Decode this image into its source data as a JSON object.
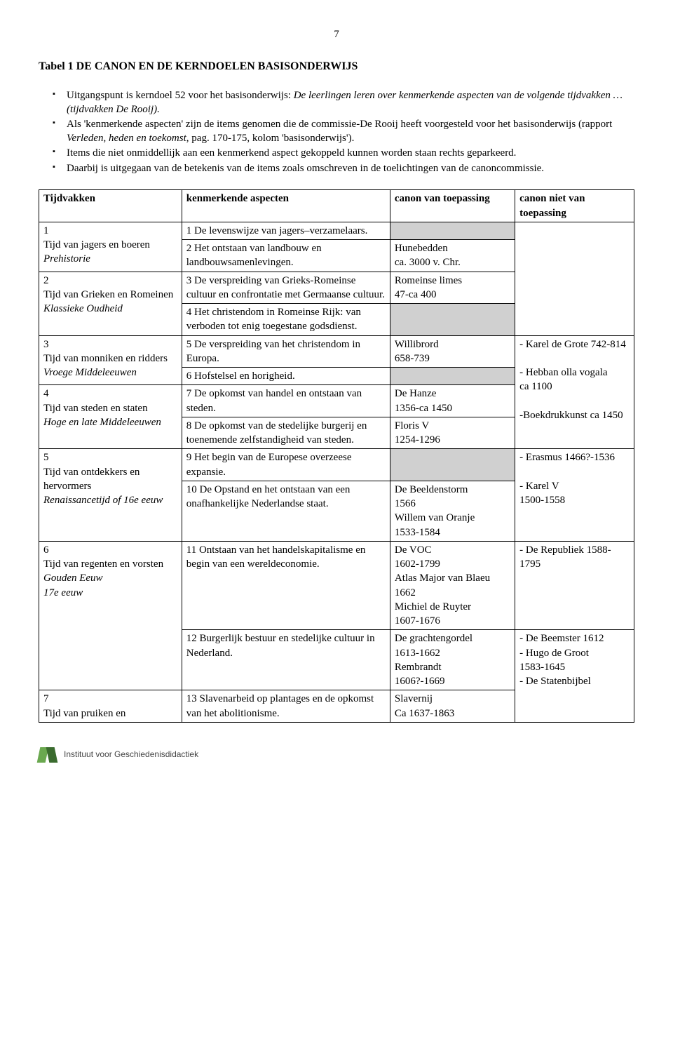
{
  "page_number": "7",
  "title": "Tabel 1  DE CANON EN DE KERNDOELEN BASISONDERWIJS",
  "bullets": [
    {
      "pre": "Uitgangspunt is kerndoel 52 voor het basisonderwijs: ",
      "it": "De leerlingen leren over kenmerkende aspecten van de volgende tijdvakken … (tijdvakken De Rooij).",
      "post": ""
    },
    {
      "pre": "Als 'kenmerkende aspecten' zijn de items genomen die de commissie-De Rooij heeft voorgesteld voor het basisonderwijs (rapport ",
      "it": "Verleden, heden en toekomst",
      "post": ", pag. 170-175, kolom 'basisonderwijs')."
    },
    {
      "pre": "Items die niet onmiddellijk aan een kenmerkend aspect gekoppeld kunnen worden staan rechts geparkeerd.",
      "it": "",
      "post": ""
    },
    {
      "pre": "Daarbij is uitgegaan van de betekenis van de items zoals omschreven in de toelichtingen van de canoncommissie.",
      "it": "",
      "post": ""
    }
  ],
  "headers": [
    "Tijdvakken",
    "kenmerkende aspecten",
    "canon van toepassing",
    "canon niet van toepassing"
  ],
  "periods": {
    "p1": {
      "num": "1",
      "name": "Tijd van jagers en boeren",
      "era": "Prehistorie"
    },
    "p2": {
      "num": "2",
      "name": "Tijd  van  Grieken  en Romeinen",
      "era": "Klassieke Oudheid"
    },
    "p3": {
      "num": "3",
      "name": "Tijd van monniken en ridders",
      "era": "Vroege Middeleeuwen"
    },
    "p4": {
      "num": "4",
      "name": "Tijd van steden en staten",
      "era": "Hoge en late Middeleeuwen"
    },
    "p5": {
      "num": "5",
      "name": "Tijd van ontdekkers en hervormers",
      "era": "Renaissancetijd of 16e eeuw"
    },
    "p6": {
      "num": "6",
      "name": "Tijd van regenten en vorsten",
      "era": "Gouden Eeuw",
      "era2": "17e eeuw"
    },
    "p7": {
      "num": "7",
      "name": "Tijd van pruiken en"
    }
  },
  "asp": {
    "a1": "1 De levenswijze van jagers–verzamelaars.",
    "a2": "2 Het ontstaan van landbouw en landbouwsamenlevingen.",
    "a3": "3 De verspreiding van Grieks-Romeinse cultuur en confrontatie met Germaanse cultuur.",
    "a4": "4 Het christendom in Romeinse Rijk: van verboden tot enig toegestane godsdienst.",
    "a5": "5 De verspreiding van het christendom in Europa.",
    "a6": "6 Hofstelsel en horigheid.",
    "a7": "7 De opkomst van handel en ontstaan van steden.",
    "a8": "8 De opkomst van de stedelijke burgerij en toenemende zelfstandigheid van steden.",
    "a9": "9 Het begin van de Europese overzeese expansie.",
    "a10": "10 De Opstand en het ontstaan van een onafhankelijke Nederlandse staat.",
    "a11": "11 Ontstaan van het handelskapitalisme en begin van een wereldeconomie.",
    "a12": "12 Burgerlijk bestuur en stedelijke cultuur in Nederland.",
    "a13": "13 Slavenarbeid op plantages en de opkomst van het abolitionisme."
  },
  "canon": {
    "c2": "Hunebedden\nca. 3000 v. Chr.",
    "c3": "Romeinse limes\n47-ca 400",
    "c5": "Willibrord\n658-739",
    "c7": "De Hanze\n1356-ca 1450",
    "c8": "Floris V\n1254-1296",
    "c10": "De Beeldenstorm\n1566\nWillem van Oranje\n1533-1584",
    "c11": "De VOC\n1602-1799\nAtlas Major van Blaeu\n1662\nMichiel de Ruyter\n1607-1676",
    "c12": "De grachtengordel\n1613-1662\nRembrandt\n1606?-1669",
    "c13": "Slavernij\nCa 1637-1863"
  },
  "niet": {
    "g1": "- Karel de Grote 742-814\n\n- Hebban olla vogala\nca 1100\n\n-Boekdrukkunst ca 1450",
    "g2": "- Erasmus 1466?-1536\n\n- Karel V\n1500-1558",
    "g3": "- De Republiek 1588-1795",
    "g4": "- De Beemster 1612\n- Hugo de Groot\n1583-1645\n- De Statenbijbel"
  },
  "footer": "Instituut voor Geschiedenisdidactiek",
  "colors": {
    "shaded": "#d0d0d0",
    "logo_light": "#6aa84f",
    "logo_dark": "#3a6b2e"
  }
}
